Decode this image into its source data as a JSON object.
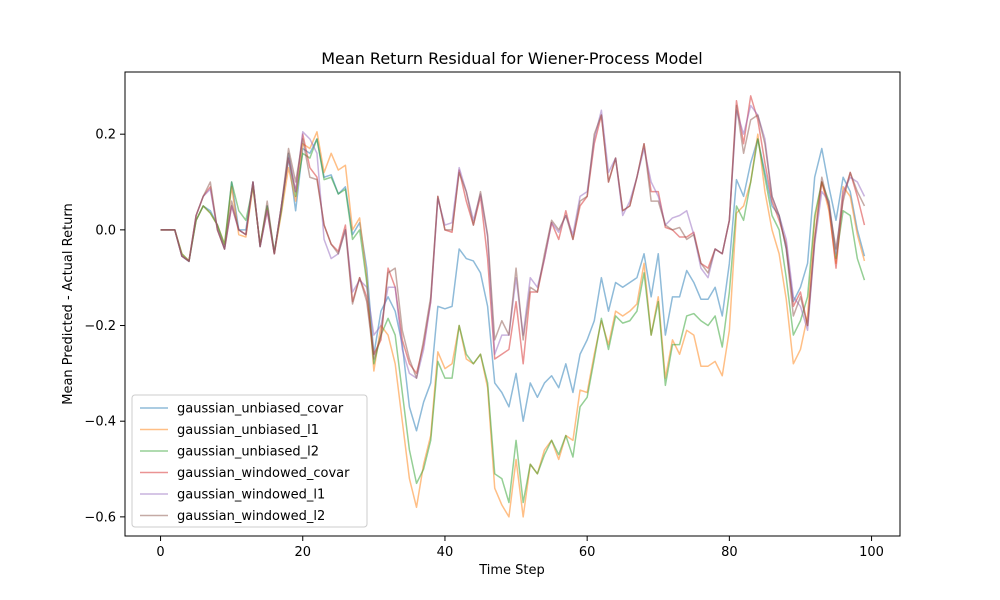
{
  "chart_data": {
    "type": "line",
    "title": "Mean Return Residual for Wiener-Process Model",
    "xlabel": "Time Step",
    "ylabel": "Mean Predicted - Actual Return",
    "xlim": [
      -5,
      104
    ],
    "ylim": [
      -0.64,
      0.33
    ],
    "xticks": [
      0,
      20,
      40,
      60,
      80,
      100
    ],
    "yticks": [
      -0.6,
      -0.4,
      -0.2,
      0.0,
      0.2
    ],
    "ytick_labels": [
      "−0.6",
      "−0.4",
      "−0.2",
      "0.0",
      "0.2"
    ],
    "grid": false,
    "legend_position": "lower-left",
    "line_alpha": 0.5,
    "x": [
      0,
      1,
      2,
      3,
      4,
      5,
      6,
      7,
      8,
      9,
      10,
      11,
      12,
      13,
      14,
      15,
      16,
      17,
      18,
      19,
      20,
      21,
      22,
      23,
      24,
      25,
      26,
      27,
      28,
      29,
      30,
      31,
      32,
      33,
      34,
      35,
      36,
      37,
      38,
      39,
      40,
      41,
      42,
      43,
      44,
      45,
      46,
      47,
      48,
      49,
      50,
      51,
      52,
      53,
      54,
      55,
      56,
      57,
      58,
      59,
      60,
      61,
      62,
      63,
      64,
      65,
      66,
      67,
      68,
      69,
      70,
      71,
      72,
      73,
      74,
      75,
      76,
      77,
      78,
      79,
      80,
      81,
      82,
      83,
      84,
      85,
      86,
      87,
      88,
      89,
      90,
      91,
      92,
      93,
      94,
      95,
      96,
      97,
      98,
      99
    ],
    "series": [
      {
        "name": "gaussian_unbiased_covar",
        "color": "#1f77b4",
        "values": [
          0.0,
          0.0,
          0.0,
          -0.055,
          -0.066,
          0.02,
          0.05,
          0.04,
          0.01,
          -0.04,
          0.1,
          0.0,
          0.0,
          0.1,
          -0.035,
          0.05,
          -0.05,
          0.05,
          0.15,
          0.04,
          0.17,
          0.16,
          0.19,
          0.11,
          0.115,
          0.075,
          0.09,
          -0.01,
          0.015,
          -0.08,
          -0.26,
          -0.17,
          -0.14,
          -0.17,
          -0.24,
          -0.37,
          -0.42,
          -0.36,
          -0.32,
          -0.16,
          -0.165,
          -0.16,
          -0.04,
          -0.06,
          -0.065,
          -0.09,
          -0.16,
          -0.32,
          -0.34,
          -0.37,
          -0.3,
          -0.4,
          -0.32,
          -0.35,
          -0.32,
          -0.305,
          -0.33,
          -0.28,
          -0.34,
          -0.26,
          -0.23,
          -0.19,
          -0.1,
          -0.17,
          -0.11,
          -0.12,
          -0.11,
          -0.1,
          -0.05,
          -0.14,
          -0.05,
          -0.22,
          -0.14,
          -0.14,
          -0.085,
          -0.11,
          -0.145,
          -0.145,
          -0.12,
          -0.18,
          -0.07,
          0.105,
          0.07,
          0.14,
          0.19,
          0.12,
          0.05,
          0.03,
          -0.04,
          -0.15,
          -0.12,
          -0.07,
          0.11,
          0.17,
          0.09,
          0.02,
          0.11,
          0.08,
          0.0,
          -0.055
        ]
      },
      {
        "name": "gaussian_unbiased_l1",
        "color": "#ff7f0e",
        "values": [
          0.0,
          0.0,
          0.0,
          -0.05,
          -0.065,
          0.02,
          0.05,
          0.035,
          0.01,
          -0.03,
          0.09,
          -0.01,
          -0.015,
          0.09,
          -0.03,
          0.045,
          -0.05,
          0.035,
          0.13,
          0.06,
          0.18,
          0.17,
          0.205,
          0.12,
          0.16,
          0.125,
          0.135,
          0.0,
          0.025,
          -0.1,
          -0.295,
          -0.2,
          -0.22,
          -0.28,
          -0.4,
          -0.52,
          -0.58,
          -0.49,
          -0.43,
          -0.255,
          -0.29,
          -0.28,
          -0.2,
          -0.27,
          -0.28,
          -0.26,
          -0.33,
          -0.54,
          -0.575,
          -0.6,
          -0.48,
          -0.6,
          -0.49,
          -0.51,
          -0.46,
          -0.44,
          -0.48,
          -0.43,
          -0.44,
          -0.335,
          -0.34,
          -0.26,
          -0.19,
          -0.24,
          -0.17,
          -0.18,
          -0.17,
          -0.155,
          -0.07,
          -0.22,
          -0.14,
          -0.31,
          -0.23,
          -0.26,
          -0.21,
          -0.22,
          -0.285,
          -0.285,
          -0.275,
          -0.305,
          -0.21,
          0.035,
          0.05,
          0.1,
          0.2,
          0.08,
          0.0,
          -0.05,
          -0.145,
          -0.28,
          -0.25,
          -0.18,
          0.02,
          0.1,
          0.04,
          -0.07,
          0.09,
          0.07,
          -0.01,
          -0.065
        ]
      },
      {
        "name": "gaussian_unbiased_l2",
        "color": "#2ca02c",
        "values": [
          0.0,
          0.0,
          0.0,
          -0.05,
          -0.065,
          0.02,
          0.05,
          0.035,
          0.01,
          -0.03,
          0.1,
          0.04,
          0.02,
          0.09,
          -0.03,
          0.05,
          -0.045,
          0.04,
          0.16,
          0.07,
          0.16,
          0.15,
          0.19,
          0.105,
          0.11,
          0.075,
          0.085,
          -0.02,
          0.0,
          -0.11,
          -0.28,
          -0.22,
          -0.185,
          -0.22,
          -0.34,
          -0.46,
          -0.53,
          -0.5,
          -0.44,
          -0.275,
          -0.31,
          -0.31,
          -0.2,
          -0.26,
          -0.28,
          -0.26,
          -0.32,
          -0.51,
          -0.52,
          -0.57,
          -0.44,
          -0.57,
          -0.49,
          -0.51,
          -0.47,
          -0.44,
          -0.47,
          -0.43,
          -0.475,
          -0.37,
          -0.35,
          -0.27,
          -0.185,
          -0.25,
          -0.18,
          -0.195,
          -0.19,
          -0.17,
          -0.09,
          -0.22,
          -0.15,
          -0.325,
          -0.24,
          -0.24,
          -0.18,
          -0.175,
          -0.19,
          -0.2,
          -0.18,
          -0.245,
          -0.13,
          0.05,
          0.02,
          0.1,
          0.19,
          0.11,
          0.03,
          0.0,
          -0.1,
          -0.22,
          -0.19,
          -0.14,
          0.03,
          0.1,
          0.06,
          -0.06,
          0.04,
          0.03,
          -0.06,
          -0.105
        ]
      },
      {
        "name": "gaussian_windowed_covar",
        "color": "#d62728",
        "values": [
          0.0,
          0.0,
          0.0,
          -0.055,
          -0.065,
          0.03,
          0.07,
          0.09,
          0.0,
          -0.04,
          0.05,
          0.0,
          -0.01,
          0.1,
          -0.035,
          0.04,
          -0.05,
          0.05,
          0.15,
          0.08,
          0.2,
          0.13,
          0.11,
          0.01,
          -0.03,
          -0.045,
          0.01,
          -0.15,
          -0.1,
          -0.14,
          -0.26,
          -0.23,
          -0.08,
          -0.12,
          -0.23,
          -0.28,
          -0.3,
          -0.24,
          -0.15,
          0.07,
          0.0,
          -0.005,
          0.125,
          0.06,
          0.01,
          0.07,
          -0.06,
          -0.27,
          -0.26,
          -0.25,
          -0.15,
          -0.28,
          -0.13,
          -0.13,
          -0.06,
          0.015,
          -0.02,
          0.04,
          -0.02,
          0.05,
          0.07,
          0.18,
          0.24,
          0.1,
          0.15,
          0.04,
          0.05,
          0.11,
          0.18,
          0.08,
          0.08,
          0.005,
          0.0,
          -0.015,
          -0.015,
          -0.005,
          -0.07,
          -0.08,
          -0.04,
          -0.05,
          0.02,
          0.27,
          0.18,
          0.28,
          0.23,
          0.14,
          0.06,
          0.02,
          -0.03,
          -0.16,
          -0.13,
          -0.2,
          -0.02,
          0.1,
          0.05,
          -0.08,
          0.07,
          0.12,
          0.07,
          0.01
        ]
      },
      {
        "name": "gaussian_windowed_l1",
        "color": "#9467bd",
        "values": [
          0.0,
          0.0,
          0.0,
          -0.055,
          -0.066,
          0.03,
          0.07,
          0.085,
          0.0,
          -0.04,
          0.05,
          0.0,
          -0.01,
          0.1,
          -0.035,
          0.04,
          -0.05,
          0.05,
          0.16,
          0.08,
          0.205,
          0.19,
          0.16,
          -0.02,
          -0.06,
          -0.05,
          0.0,
          -0.13,
          -0.105,
          -0.12,
          -0.22,
          -0.2,
          -0.12,
          -0.12,
          -0.25,
          -0.3,
          -0.31,
          -0.25,
          -0.15,
          0.065,
          0.01,
          0.015,
          0.13,
          0.08,
          0.02,
          0.075,
          -0.015,
          -0.26,
          -0.22,
          -0.22,
          -0.1,
          -0.22,
          -0.1,
          -0.12,
          -0.06,
          0.015,
          -0.005,
          0.03,
          -0.01,
          0.07,
          0.08,
          0.19,
          0.25,
          0.12,
          0.15,
          0.03,
          0.06,
          0.11,
          0.17,
          0.1,
          0.07,
          0.01,
          0.025,
          0.03,
          0.04,
          -0.01,
          -0.08,
          -0.1,
          -0.04,
          -0.05,
          0.02,
          0.25,
          0.2,
          0.26,
          0.24,
          0.19,
          0.07,
          0.03,
          -0.02,
          -0.14,
          -0.16,
          -0.21,
          -0.03,
          0.08,
          0.06,
          -0.05,
          0.08,
          0.11,
          0.1,
          0.07
        ]
      },
      {
        "name": "gaussian_windowed_l2",
        "color": "#8c564b",
        "values": [
          0.0,
          0.0,
          0.0,
          -0.055,
          -0.066,
          0.03,
          0.07,
          0.1,
          0.0,
          -0.04,
          0.06,
          0.0,
          -0.01,
          0.1,
          -0.035,
          0.06,
          -0.05,
          0.05,
          0.17,
          0.1,
          0.19,
          0.11,
          0.105,
          0.01,
          -0.03,
          -0.05,
          0.0,
          -0.155,
          -0.1,
          -0.15,
          -0.27,
          -0.22,
          -0.09,
          -0.08,
          -0.21,
          -0.27,
          -0.31,
          -0.23,
          -0.14,
          0.07,
          0.0,
          0.0,
          0.12,
          0.08,
          0.01,
          0.08,
          -0.01,
          -0.23,
          -0.19,
          -0.22,
          -0.08,
          -0.23,
          -0.12,
          -0.13,
          -0.05,
          0.02,
          0.0,
          0.03,
          -0.02,
          0.06,
          0.07,
          0.2,
          0.24,
          0.1,
          0.15,
          0.04,
          0.05,
          0.11,
          0.18,
          0.06,
          0.06,
          0.01,
          0.0,
          0.005,
          -0.02,
          -0.01,
          -0.07,
          -0.09,
          -0.04,
          -0.05,
          0.02,
          0.26,
          0.16,
          0.23,
          0.24,
          0.18,
          0.07,
          0.03,
          -0.04,
          -0.18,
          -0.14,
          -0.2,
          -0.02,
          0.11,
          0.05,
          -0.04,
          0.06,
          0.12,
          0.08,
          0.05
        ]
      }
    ]
  }
}
